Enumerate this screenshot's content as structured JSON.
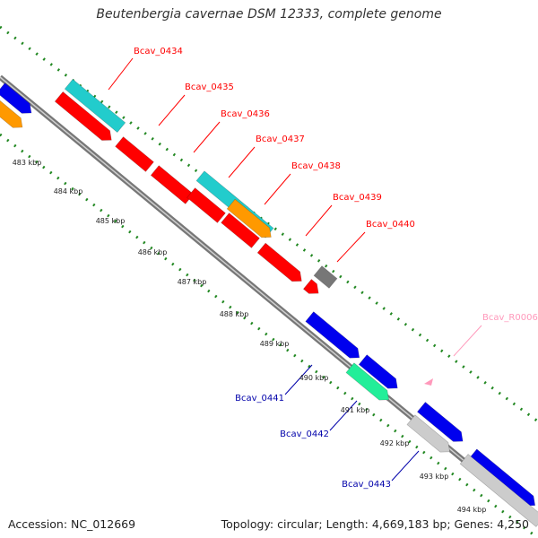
{
  "title": "Beutenbergia cavernae DSM 12333, complete genome",
  "accession": "Accession: NC_012669",
  "summary": "Topology: circular; Length: 4,669,183 bp; Genes: 4,250",
  "colors": {
    "cds_red": "#ff0000",
    "cds_blue": "#0000ee",
    "cds_cyan": "#22cccc",
    "cds_orange": "#ff9900",
    "cds_gray": "#777777",
    "cds_light": "#cccccc",
    "cds_green": "#22ee99",
    "label_red": "#dd0000",
    "label_blue": "#0000aa",
    "label_pink": "#ff99bb",
    "tick_green": "#228822"
  },
  "genes": [
    {
      "name": "Bcav_0434",
      "color": "cds_red"
    },
    {
      "name": "Bcav_0435",
      "color": "cds_red"
    },
    {
      "name": "Bcav_0436",
      "color": "cds_red"
    },
    {
      "name": "Bcav_0437",
      "color": "cds_red"
    },
    {
      "name": "Bcav_0438",
      "color": "cds_red"
    },
    {
      "name": "Bcav_0439",
      "color": "cds_red"
    },
    {
      "name": "Bcav_0440",
      "color": "cds_red"
    },
    {
      "name": "Bcav_R0006",
      "color": "label_pink"
    },
    {
      "name": "Bcav_0441",
      "color": "label_blue"
    },
    {
      "name": "Bcav_0442",
      "color": "label_blue"
    },
    {
      "name": "Bcav_0443",
      "color": "label_blue"
    }
  ],
  "kbp_ticks": [
    "483 kbp",
    "484 kbp",
    "485 kbp",
    "486 kbp",
    "487 kbp",
    "488 kbp",
    "489 kbp",
    "490 kbp",
    "491 kbp",
    "492 kbp",
    "493 kbp",
    "494 kbp"
  ]
}
